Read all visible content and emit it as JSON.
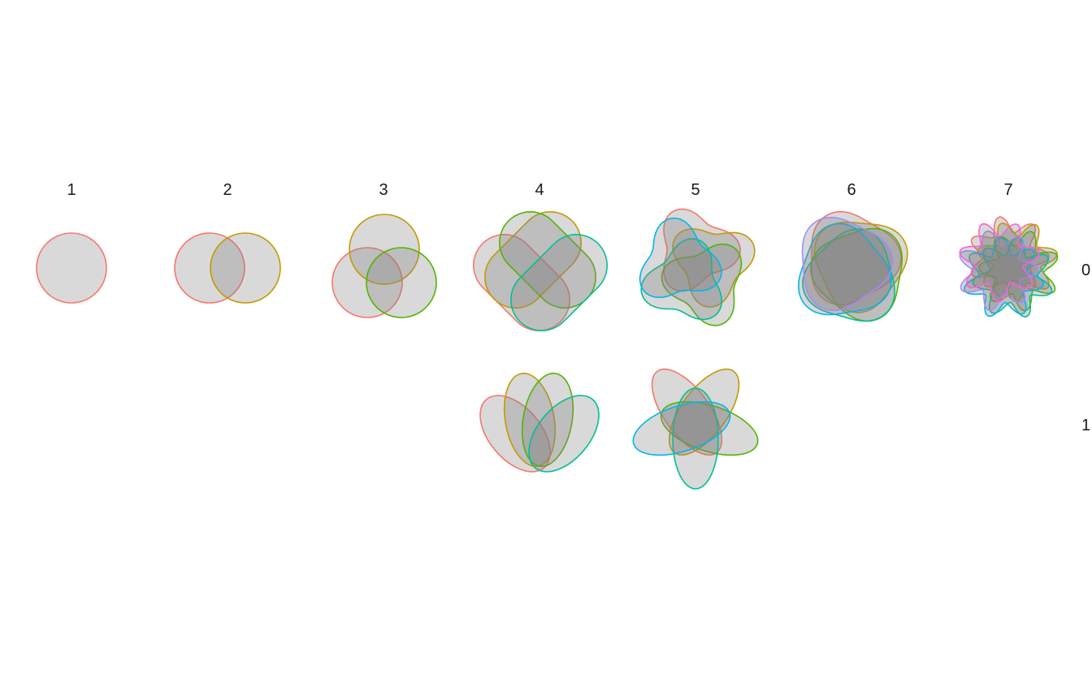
{
  "facets": {
    "columns": [
      "1",
      "2",
      "3",
      "4",
      "5",
      "6",
      "7"
    ],
    "rows": [
      "0",
      "1"
    ]
  },
  "set_colors": [
    "#F8766D",
    "#C49A00",
    "#53B400",
    "#00C094",
    "#00B6EB",
    "#A58AFF",
    "#FB61D7"
  ],
  "panels": [
    {
      "col": 0,
      "row": 0,
      "sets": 1,
      "kind": "circle"
    },
    {
      "col": 1,
      "row": 0,
      "sets": 2,
      "kind": "circle"
    },
    {
      "col": 2,
      "row": 0,
      "sets": 3,
      "kind": "circle"
    },
    {
      "col": 3,
      "row": 0,
      "sets": 4,
      "kind": "stadium"
    },
    {
      "col": 4,
      "row": 0,
      "sets": 5,
      "kind": "wavy"
    },
    {
      "col": 5,
      "row": 0,
      "sets": 6,
      "kind": "wavy"
    },
    {
      "col": 6,
      "row": 0,
      "sets": 7,
      "kind": "wavy"
    },
    {
      "col": 3,
      "row": 1,
      "sets": 4,
      "kind": "ellipse"
    },
    {
      "col": 4,
      "row": 1,
      "sets": 5,
      "kind": "ellipse"
    }
  ]
}
